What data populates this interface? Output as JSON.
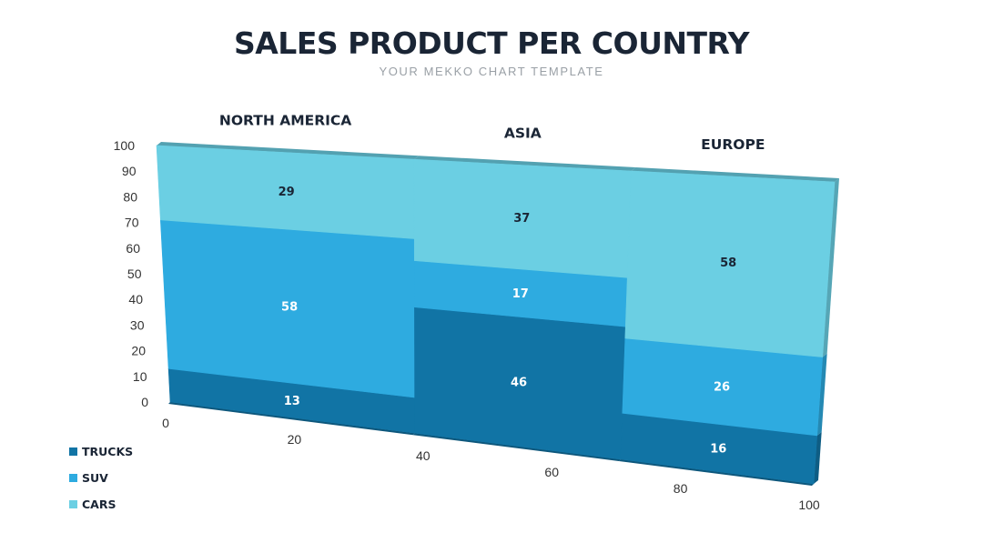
{
  "title": "SALES PRODUCT PER COUNTRY",
  "subtitle": "YOUR MEKKO CHART TEMPLATE",
  "colors": {
    "trucks": "#1174a5",
    "suv": "#2eabe0",
    "cars": "#6bcfe3",
    "text_dark": "#1a2535",
    "axis_text": "#333333"
  },
  "chart_data": {
    "type": "mekko",
    "x_axis": {
      "ticks": [
        "0",
        "20",
        "40",
        "60",
        "80",
        "100"
      ],
      "range": [
        0,
        100
      ]
    },
    "y_axis": {
      "ticks": [
        "0",
        "10",
        "20",
        "30",
        "40",
        "50",
        "60",
        "70",
        "80",
        "90",
        "100"
      ],
      "range": [
        0,
        100
      ]
    },
    "legend": {
      "position": "bottom-left",
      "entries": [
        {
          "key": "trucks",
          "label": "TRUCKS"
        },
        {
          "key": "suv",
          "label": "SUV"
        },
        {
          "key": "cars",
          "label": "CARS"
        }
      ]
    },
    "categories": [
      {
        "name": "NORTH AMERICA",
        "x_start": 0,
        "x_end": 38,
        "segments": [
          {
            "series": "trucks",
            "value": 13,
            "label": "13"
          },
          {
            "series": "suv",
            "value": 58,
            "label": "58"
          },
          {
            "series": "cars",
            "value": 29,
            "label": "29"
          }
        ]
      },
      {
        "name": "ASIA",
        "x_start": 38,
        "x_end": 70,
        "segments": [
          {
            "series": "trucks",
            "value": 46,
            "label": "46"
          },
          {
            "series": "suv",
            "value": 17,
            "label": "17"
          },
          {
            "series": "cars",
            "value": 37,
            "label": "37"
          }
        ]
      },
      {
        "name": "EUROPE",
        "x_start": 70,
        "x_end": 100,
        "segments": [
          {
            "series": "trucks",
            "value": 16,
            "label": "16"
          },
          {
            "series": "suv",
            "value": 26,
            "label": "26"
          },
          {
            "series": "cars",
            "value": 58,
            "label": "58"
          }
        ]
      }
    ]
  }
}
